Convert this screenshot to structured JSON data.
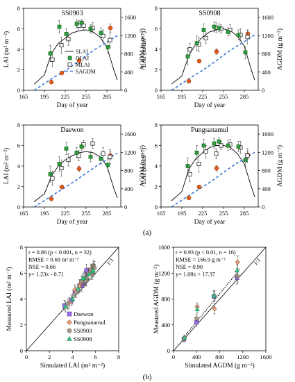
{
  "figure": {
    "label_a": "(a)",
    "label_b": "(b)"
  },
  "chart_data": [
    {
      "type": "line",
      "title": "SS0903",
      "xlabel": "Day of year",
      "ylabel": "LAI (m² m⁻²)",
      "y2label": "AGDM (g m⁻²)",
      "xlim": [
        165,
        305
      ],
      "ylim": [
        0,
        8
      ],
      "y2lim": [
        0,
        1800
      ],
      "xticks": [
        "165",
        "195",
        "225",
        "255",
        "285"
      ],
      "yticks": [
        "0",
        "2",
        "4",
        "6",
        "8"
      ],
      "y2ticks": [
        "0",
        "400",
        "800",
        "1200",
        "1600"
      ],
      "legend": [
        "SLAI",
        "OLAI",
        "MLAI",
        "SAGDM"
      ],
      "slai": {
        "x": [
          180,
          195,
          205,
          215,
          225,
          235,
          245,
          255,
          265,
          275,
          285,
          295,
          300
        ],
        "y": [
          0.6,
          1.5,
          3.6,
          4.6,
          5.1,
          5.6,
          5.8,
          5.9,
          5.7,
          5.2,
          4.2,
          2.0,
          1.0
        ]
      },
      "olai": {
        "x": [
          205,
          218,
          228,
          243,
          250,
          263,
          278,
          288
        ],
        "y": [
          3.6,
          6.2,
          5.5,
          6.5,
          6.6,
          6.0,
          5.6,
          4.2
        ],
        "err": [
          0.8,
          0.6,
          0.5,
          0.4,
          0.3,
          0.4,
          0.5,
          0.6
        ]
      },
      "mlai": {
        "x": [
          205,
          218,
          228,
          243,
          250,
          263,
          278,
          288
        ],
        "y": [
          3.0,
          4.4,
          5.0,
          6.3,
          6.3,
          6.1,
          5.3,
          4.9
        ],
        "err": [
          0.7,
          0.8,
          0.6,
          0.5,
          0.4,
          0.5,
          0.6,
          0.7
        ]
      },
      "sagdm": {
        "x": [
          180,
          195,
          210,
          225,
          240,
          255,
          270,
          285,
          300
        ],
        "y": [
          0,
          150,
          300,
          430,
          590,
          760,
          920,
          1060,
          1200
        ]
      },
      "oagdm": {
        "x": [
          205,
          220,
          245,
          290
        ],
        "y": [
          180,
          380,
          650,
          1370
        ],
        "err": [
          30,
          40,
          60,
          90
        ]
      }
    },
    {
      "type": "line",
      "title": "SS0908",
      "xlabel": "Day of year",
      "ylabel": "LAI (m² m⁻²)",
      "y2label": "AGDM (g m⁻²)",
      "xlim": [
        165,
        305
      ],
      "ylim": [
        0,
        8
      ],
      "y2lim": [
        0,
        1800
      ],
      "xticks": [
        "165",
        "195",
        "225",
        "255",
        "285"
      ],
      "yticks": [
        "0",
        "2",
        "4",
        "6",
        "8"
      ],
      "y2ticks": [
        "0",
        "400",
        "800",
        "1200",
        "1600"
      ],
      "slai": {
        "x": [
          180,
          195,
          205,
          215,
          225,
          235,
          245,
          255,
          265,
          275,
          285,
          295,
          300
        ],
        "y": [
          0.6,
          1.4,
          3.4,
          4.5,
          5.2,
          5.7,
          5.9,
          6.0,
          5.8,
          5.3,
          4.3,
          2.0,
          1.0
        ]
      },
      "olai": {
        "x": [
          205,
          218,
          228,
          243,
          250,
          263,
          278,
          288
        ],
        "y": [
          3.3,
          4.6,
          5.9,
          6.2,
          6.1,
          5.7,
          5.4,
          3.7
        ],
        "err": [
          0.8,
          0.7,
          0.6,
          0.5,
          0.4,
          0.4,
          0.5,
          0.6
        ]
      },
      "mlai": {
        "x": [
          205,
          218,
          228,
          243,
          250,
          263,
          278,
          288
        ],
        "y": [
          4.0,
          4.5,
          5.1,
          6.1,
          6.0,
          5.9,
          5.4,
          5.2
        ],
        "err": [
          0.6,
          0.7,
          0.5,
          0.5,
          0.4,
          0.5,
          0.6,
          0.7
        ]
      },
      "sagdm": {
        "x": [
          180,
          195,
          210,
          225,
          240,
          255,
          270,
          285,
          300
        ],
        "y": [
          0,
          150,
          300,
          440,
          600,
          770,
          930,
          1070,
          1220
        ]
      },
      "oagdm": {
        "x": [
          205,
          220,
          245,
          290
        ],
        "y": [
          200,
          640,
          850,
          1240
        ],
        "err": [
          30,
          40,
          60,
          90
        ]
      }
    },
    {
      "type": "line",
      "title": "Daewon",
      "xlabel": "Day of year",
      "ylabel": "LAI (m² m⁻²)",
      "y2label": "AGDM (g m⁻²)",
      "xlim": [
        165,
        305
      ],
      "ylim": [
        0,
        8
      ],
      "y2lim": [
        0,
        1800
      ],
      "xticks": [
        "165",
        "195",
        "225",
        "255",
        "285"
      ],
      "yticks": [
        "0",
        "2",
        "4",
        "6",
        "8"
      ],
      "y2ticks": [
        "0",
        "400",
        "800",
        "1200",
        "1600"
      ],
      "slai": {
        "x": [
          180,
          195,
          205,
          215,
          225,
          235,
          245,
          255,
          265,
          275,
          285,
          295,
          300
        ],
        "y": [
          0.5,
          1.3,
          3.0,
          4.0,
          4.6,
          5.0,
          5.3,
          5.4,
          5.3,
          4.9,
          4.0,
          1.8,
          0.9
        ]
      },
      "olai": {
        "x": [
          205,
          218,
          228,
          243,
          250,
          263,
          278,
          288
        ],
        "y": [
          3.2,
          4.2,
          5.7,
          5.3,
          5.9,
          4.9,
          4.7,
          4.1
        ],
        "err": [
          0.8,
          0.7,
          0.6,
          0.5,
          0.4,
          0.5,
          0.5,
          0.6
        ]
      },
      "mlai": {
        "x": [
          205,
          218,
          228,
          243,
          250,
          263,
          278,
          288
        ],
        "y": [
          2.8,
          3.8,
          4.6,
          5.0,
          6.1,
          6.2,
          5.2,
          4.9
        ],
        "err": [
          0.7,
          0.8,
          0.6,
          0.5,
          0.4,
          0.5,
          0.6,
          0.7
        ]
      },
      "sagdm": {
        "x": [
          180,
          195,
          210,
          225,
          240,
          255,
          270,
          285,
          300
        ],
        "y": [
          0,
          140,
          290,
          430,
          580,
          740,
          900,
          1040,
          1180
        ]
      },
      "oagdm": {
        "x": [
          205,
          220,
          245,
          290
        ],
        "y": [
          180,
          440,
          840,
          1130
        ],
        "err": [
          30,
          40,
          60,
          90
        ]
      }
    },
    {
      "type": "line",
      "title": "Pungsanamul",
      "xlabel": "Day of year",
      "ylabel": "LAI (m² m⁻²)",
      "y2label": "AGDM (g m⁻²)",
      "xlim": [
        165,
        305
      ],
      "ylim": [
        0,
        8
      ],
      "y2lim": [
        0,
        1800
      ],
      "xticks": [
        "165",
        "195",
        "225",
        "255",
        "285"
      ],
      "yticks": [
        "0",
        "2",
        "4",
        "6",
        "8"
      ],
      "y2ticks": [
        "0",
        "400",
        "800",
        "1200",
        "1600"
      ],
      "slai": {
        "x": [
          180,
          195,
          205,
          215,
          225,
          235,
          245,
          255,
          265,
          275,
          285,
          295,
          300
        ],
        "y": [
          0.6,
          1.5,
          3.7,
          4.7,
          5.3,
          5.8,
          6.0,
          6.0,
          5.8,
          5.2,
          4.2,
          2.0,
          1.0
        ]
      },
      "olai": {
        "x": [
          205,
          218,
          228,
          243,
          250,
          263,
          278,
          288
        ],
        "y": [
          4.0,
          5.3,
          6.0,
          6.2,
          6.4,
          6.0,
          5.9,
          4.6
        ],
        "err": [
          0.8,
          0.7,
          0.6,
          0.5,
          0.4,
          0.5,
          0.5,
          0.6
        ]
      },
      "mlai": {
        "x": [
          205,
          218,
          228,
          243,
          250,
          263,
          278,
          288
        ],
        "y": [
          3.2,
          4.2,
          5.4,
          5.2,
          6.0,
          6.1,
          5.8,
          5.0
        ],
        "err": [
          0.7,
          0.8,
          0.6,
          0.5,
          0.4,
          0.5,
          0.6,
          0.7
        ]
      },
      "sagdm": {
        "x": [
          180,
          195,
          210,
          225,
          240,
          255,
          270,
          285,
          300
        ],
        "y": [
          0,
          150,
          300,
          440,
          590,
          760,
          920,
          1060,
          1200
        ]
      },
      "oagdm": {
        "x": [
          205,
          220,
          245,
          290
        ],
        "y": [
          200,
          440,
          850,
          1140
        ],
        "err": [
          30,
          40,
          60,
          90
        ]
      }
    },
    {
      "type": "scatter",
      "xlabel": "Simulated LAI (m² m⁻²)",
      "ylabel": "Measured LAI (m² m⁻²)",
      "xlim": [
        0,
        8
      ],
      "ylim": [
        0,
        8
      ],
      "xticks": [
        "0",
        "2",
        "4",
        "6",
        "8"
      ],
      "yticks": [
        "0",
        "2",
        "4",
        "6",
        "8"
      ],
      "one_to_one": "1:1",
      "stats": [
        "r = 0.86 (p < 0.001, n = 32)",
        "RMSE = 0.69 m² m⁻²",
        "NSE = 0.66",
        "y= 1.23x - 0.71"
      ],
      "fit": {
        "slope": 1.23,
        "intercept": -0.71,
        "x": [
          3.2,
          6.0
        ]
      },
      "legend": [
        "Daewon",
        "Pungsanamul",
        "SS0903",
        "SS0908"
      ],
      "series": [
        {
          "name": "Daewon",
          "x": [
            3.3,
            3.9,
            4.2,
            4.6,
            5.0,
            5.3,
            5.2,
            4.8
          ],
          "y": [
            3.5,
            3.9,
            4.6,
            5.0,
            5.3,
            6.0,
            6.2,
            5.0
          ],
          "err": [
            0.4,
            0.4,
            0.4,
            0.5,
            0.4,
            0.4,
            0.5,
            0.4
          ]
        },
        {
          "name": "Pungsanamul",
          "x": [
            3.7,
            4.2,
            4.6,
            5.1,
            5.4,
            5.6,
            5.7,
            4.8
          ],
          "y": [
            3.7,
            4.7,
            5.0,
            5.6,
            6.0,
            6.3,
            6.0,
            5.3
          ],
          "err": [
            0.4,
            0.4,
            0.4,
            0.5,
            0.4,
            0.4,
            0.5,
            0.4
          ]
        },
        {
          "name": "SS0903",
          "x": [
            3.6,
            4.3,
            4.8,
            5.2,
            5.6,
            5.8,
            5.9,
            5.1
          ],
          "y": [
            3.6,
            4.5,
            5.4,
            5.5,
            6.2,
            6.6,
            6.4,
            5.4
          ],
          "err": [
            0.4,
            0.4,
            0.4,
            0.5,
            0.4,
            0.4,
            0.5,
            0.4
          ]
        },
        {
          "name": "SS0908",
          "x": [
            3.4,
            4.0,
            4.5,
            5.0,
            5.4,
            5.7,
            5.8,
            4.9
          ],
          "y": [
            3.4,
            4.0,
            4.8,
            5.6,
            5.9,
            6.1,
            6.2,
            5.6
          ],
          "err": [
            0.4,
            0.4,
            0.4,
            0.5,
            0.4,
            0.4,
            0.5,
            0.4
          ]
        }
      ]
    },
    {
      "type": "scatter",
      "xlabel": "Simulated AGDM (g m⁻²)",
      "ylabel": "Measured AGDM (g m⁻²)",
      "xlim": [
        0,
        1600
      ],
      "ylim": [
        0,
        1600
      ],
      "xticks": [
        "0",
        "400",
        "800",
        "1200",
        "1600"
      ],
      "yticks": [
        "0",
        "400",
        "800",
        "1200",
        "1600"
      ],
      "one_to_one": "1:1",
      "stats": [
        "r = 0.93 (p < 0.01, n = 16)",
        "RMSE = 166.9 g m⁻²",
        "NSE = 0.90",
        "y= 1.08x + 17.37"
      ],
      "fit": {
        "slope": 1.08,
        "intercept": 17.37,
        "x": [
          150,
          1150
        ]
      },
      "series": [
        {
          "name": "Daewon",
          "x": [
            180,
            400,
            700,
            1100
          ],
          "y": [
            180,
            440,
            840,
            1130
          ],
          "err": [
            40,
            60,
            80,
            100
          ]
        },
        {
          "name": "Pungsanamul",
          "x": [
            190,
            410,
            710,
            1110
          ],
          "y": [
            200,
            680,
            650,
            1370
          ],
          "err": [
            40,
            60,
            80,
            100
          ]
        },
        {
          "name": "SS0903",
          "x": [
            180,
            400,
            710,
            1110
          ],
          "y": [
            180,
            500,
            850,
            1150
          ],
          "err": [
            40,
            60,
            80,
            100
          ]
        },
        {
          "name": "SS0908",
          "x": [
            190,
            410,
            700,
            1100
          ],
          "y": [
            200,
            640,
            850,
            1240
          ],
          "err": [
            40,
            60,
            80,
            100
          ]
        }
      ]
    }
  ]
}
